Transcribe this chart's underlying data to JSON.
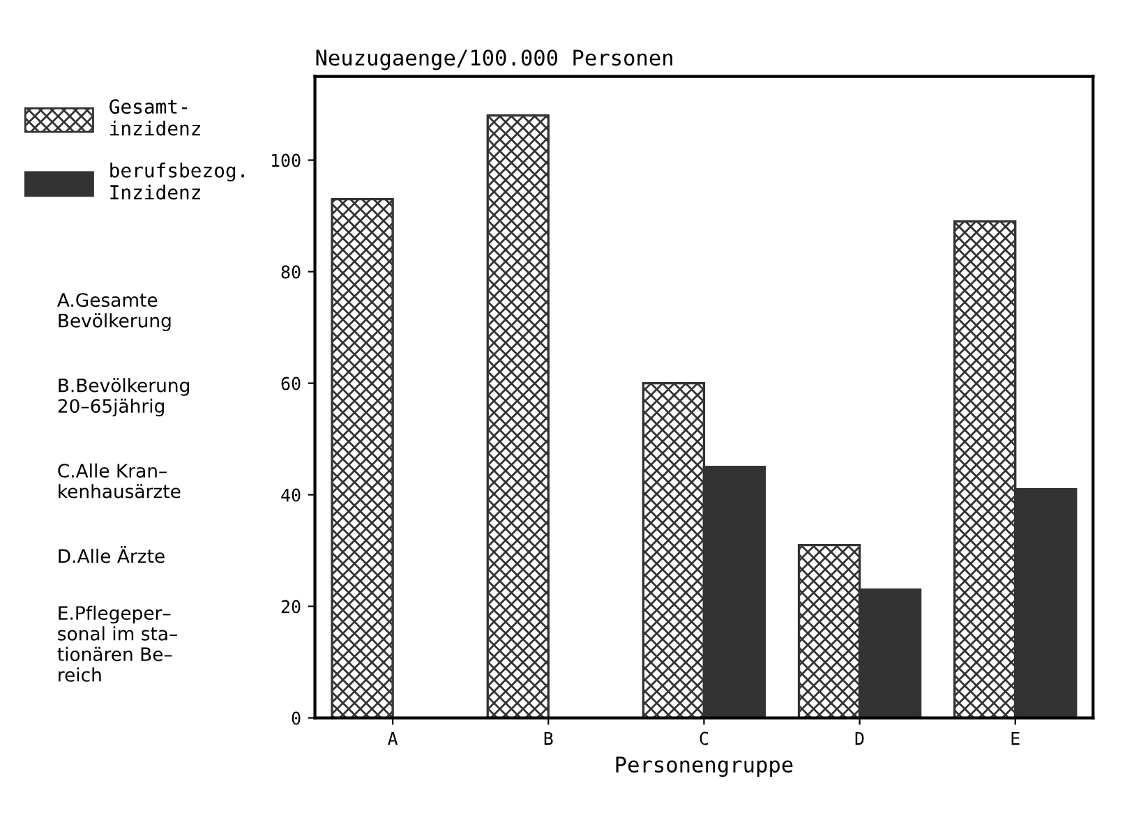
{
  "chart_data": {
    "type": "bar",
    "ylabel": "Neuzugaenge/100.000 Personen",
    "xlabel": "Personengruppe",
    "categories": [
      "A",
      "B",
      "C",
      "D",
      "E"
    ],
    "series": [
      {
        "name": "Gesamt-\ninzidenz",
        "color": "#333333",
        "values": [
          93,
          108,
          60,
          31,
          89
        ]
      },
      {
        "name": "berufsbezog.\nInzidenz",
        "color": "#333333",
        "values": [
          null,
          null,
          45,
          23,
          41
        ]
      }
    ],
    "ylim": [
      0,
      115
    ],
    "yticks": [
      0,
      20,
      40,
      60,
      80,
      100
    ],
    "grid": false,
    "legend": "left",
    "annotations": [
      "A.Gesamte\nBevölkerung",
      "B.Bevölkerung\n20–65jährig",
      "C.Alle Kran–\nkenhausärzte",
      "D.Alle Ärzte",
      "E.Pflegeper–\nsonal im sta–\ntionären Be–\nreich"
    ]
  }
}
